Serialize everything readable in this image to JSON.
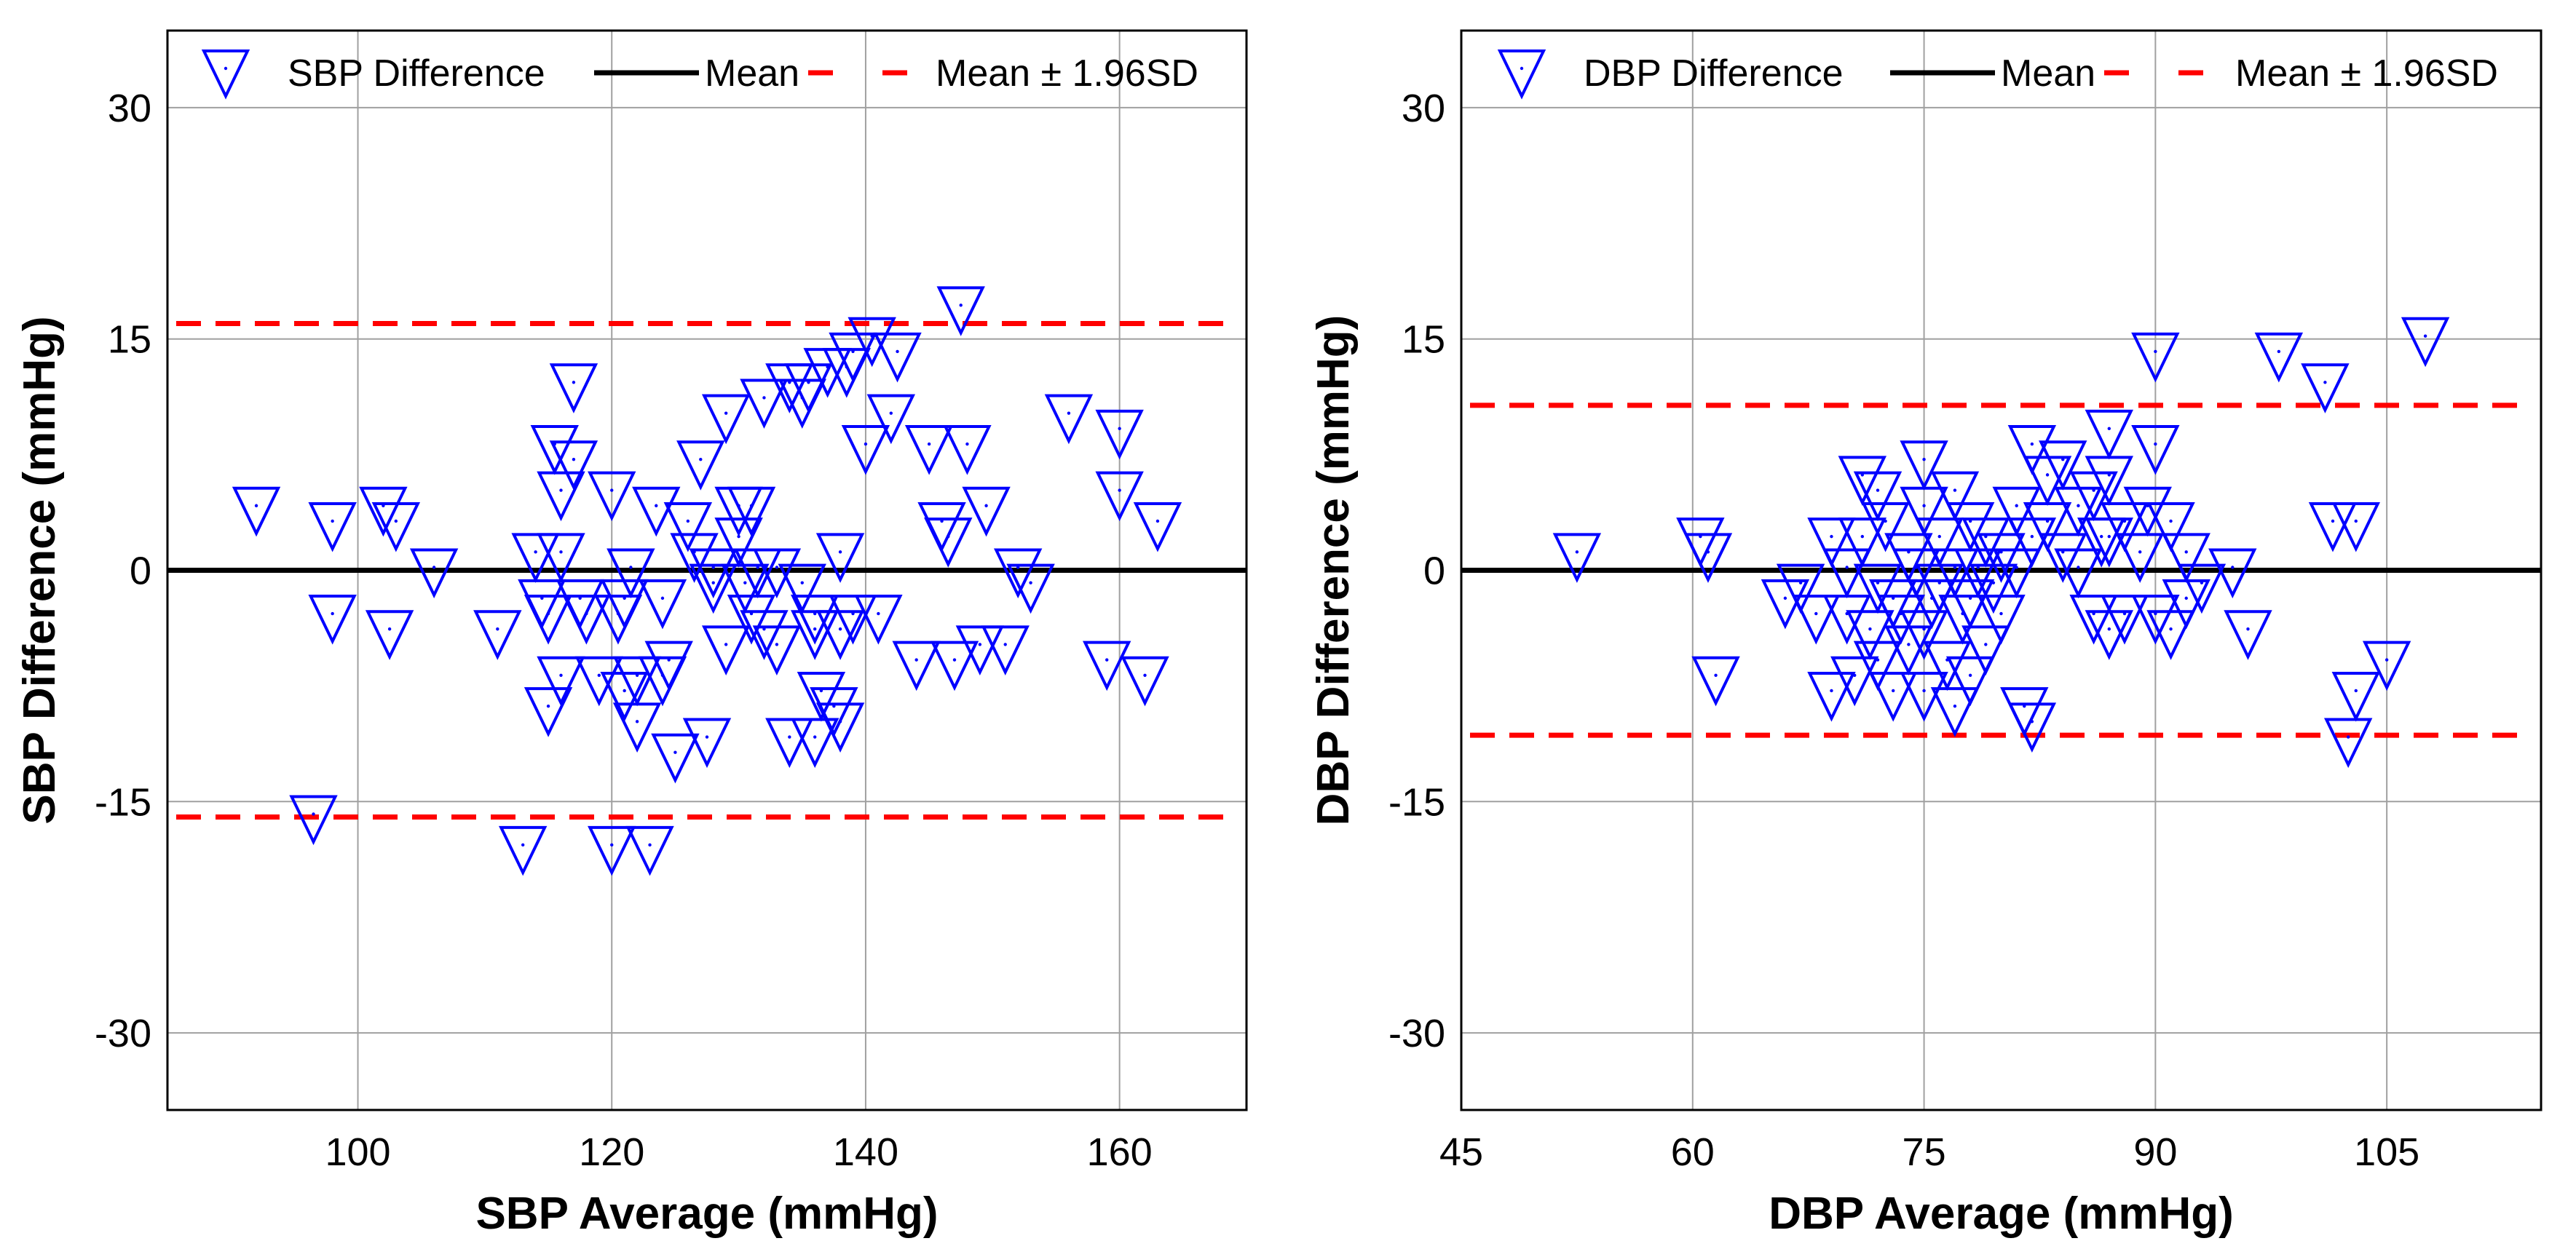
{
  "colors": {
    "marker": "#0000ff",
    "mean": "#000000",
    "limits": "#ff0000",
    "grid": "#a0a0a0",
    "axis": "#000000"
  },
  "chart_data": [
    {
      "type": "scatter",
      "id": "sbp",
      "title": "",
      "xlabel": "SBP Average (mmHg)",
      "ylabel": "SBP Difference (mmHg)",
      "xlim": [
        85,
        170
      ],
      "ylim": [
        -35,
        35
      ],
      "xticks": [
        100,
        120,
        140,
        160
      ],
      "yticks": [
        -30,
        -15,
        0,
        15,
        30
      ],
      "xtick_labels": [
        "100",
        "120",
        "140",
        "160"
      ],
      "ytick_labels": [
        "-30",
        "-15",
        "0",
        "15",
        "30"
      ],
      "grid": true,
      "legend": {
        "position": "top",
        "entries": [
          "SBP Difference",
          "Mean",
          "Mean ± 1.96SD"
        ]
      },
      "series": [
        {
          "name": "SBP Difference",
          "marker": "inverted-triangle",
          "points": [
            [
              92,
              4
            ],
            [
              96.5,
              -16
            ],
            [
              98,
              3
            ],
            [
              98,
              -3
            ],
            [
              102,
              4
            ],
            [
              102.5,
              -4
            ],
            [
              103,
              3
            ],
            [
              106,
              0
            ],
            [
              111,
              -4
            ],
            [
              113,
              -18
            ],
            [
              114,
              1
            ],
            [
              114.5,
              -2
            ],
            [
              115,
              -3
            ],
            [
              115,
              -9
            ],
            [
              115.5,
              8
            ],
            [
              116,
              5
            ],
            [
              116,
              1
            ],
            [
              116,
              -7
            ],
            [
              117,
              7
            ],
            [
              117,
              12
            ],
            [
              117.5,
              -2
            ],
            [
              118,
              -3
            ],
            [
              119,
              -7
            ],
            [
              120,
              5
            ],
            [
              120,
              -18
            ],
            [
              120.5,
              -3
            ],
            [
              121,
              -2
            ],
            [
              121,
              -8
            ],
            [
              121.5,
              0
            ],
            [
              122,
              -10
            ],
            [
              122,
              -7
            ],
            [
              123,
              -18
            ],
            [
              123.5,
              4
            ],
            [
              124,
              -2
            ],
            [
              124,
              -7
            ],
            [
              124.5,
              -6
            ],
            [
              125,
              -12
            ],
            [
              126,
              3
            ],
            [
              126.5,
              1
            ],
            [
              127,
              7
            ],
            [
              127.5,
              -11
            ],
            [
              128,
              0
            ],
            [
              128,
              -1
            ],
            [
              129,
              10
            ],
            [
              129,
              -5
            ],
            [
              130,
              4
            ],
            [
              130,
              2
            ],
            [
              130.5,
              -1
            ],
            [
              131,
              4
            ],
            [
              131,
              -3
            ],
            [
              131.5,
              0
            ],
            [
              132,
              -4
            ],
            [
              132,
              11
            ],
            [
              133,
              -5
            ],
            [
              133,
              0
            ],
            [
              134,
              -11
            ],
            [
              134,
              12
            ],
            [
              135,
              -1
            ],
            [
              135,
              11
            ],
            [
              135.5,
              12
            ],
            [
              136,
              -3
            ],
            [
              136,
              -4
            ],
            [
              136,
              -11
            ],
            [
              136.5,
              -8
            ],
            [
              137,
              13
            ],
            [
              137.5,
              -9
            ],
            [
              138,
              1
            ],
            [
              138,
              -4
            ],
            [
              138,
              -10
            ],
            [
              138.5,
              13
            ],
            [
              139,
              -3
            ],
            [
              139,
              14
            ],
            [
              140,
              8
            ],
            [
              140.5,
              15
            ],
            [
              141,
              -3
            ],
            [
              142,
              10
            ],
            [
              142.5,
              14
            ],
            [
              144,
              -6
            ],
            [
              145,
              8
            ],
            [
              146,
              3
            ],
            [
              146.5,
              2
            ],
            [
              147,
              -6
            ],
            [
              147.5,
              17
            ],
            [
              148,
              8
            ],
            [
              149,
              -5
            ],
            [
              149.5,
              4
            ],
            [
              151,
              -5
            ],
            [
              152,
              0
            ],
            [
              153,
              -1
            ],
            [
              156,
              10
            ],
            [
              159,
              -6
            ],
            [
              160,
              9
            ],
            [
              160,
              5
            ],
            [
              162,
              -7
            ],
            [
              163,
              3
            ]
          ]
        }
      ],
      "mean": 0,
      "upper_limit": 16,
      "lower_limit": -16
    },
    {
      "type": "scatter",
      "id": "dbp",
      "title": "",
      "xlabel": "DBP Average (mmHg)",
      "ylabel": "DBP Difference (mmHg)",
      "xlim": [
        45,
        115
      ],
      "ylim": [
        -35,
        35
      ],
      "xticks": [
        45,
        60,
        75,
        90,
        105
      ],
      "yticks": [
        -30,
        -15,
        0,
        15,
        30
      ],
      "xtick_labels": [
        "45",
        "60",
        "75",
        "90",
        "105"
      ],
      "ytick_labels": [
        "-30",
        "-15",
        "0",
        "15",
        "30"
      ],
      "grid": true,
      "legend": {
        "position": "top",
        "entries": [
          "DBP Difference",
          "Mean",
          "Mean ± 1.96SD"
        ]
      },
      "series": [
        {
          "name": "DBP Difference",
          "marker": "inverted-triangle",
          "points": [
            [
              52.5,
              1
            ],
            [
              60.5,
              2
            ],
            [
              61,
              1
            ],
            [
              61.5,
              -7
            ],
            [
              66,
              -2
            ],
            [
              67,
              -1
            ],
            [
              68,
              -3
            ],
            [
              69,
              2
            ],
            [
              69,
              -8
            ],
            [
              70,
              -3
            ],
            [
              70,
              0
            ],
            [
              70.5,
              -7
            ],
            [
              71,
              2
            ],
            [
              71,
              6
            ],
            [
              71.5,
              -4
            ],
            [
              72,
              5
            ],
            [
              72,
              -1
            ],
            [
              72,
              -6
            ],
            [
              72.5,
              3
            ],
            [
              73,
              -2
            ],
            [
              73,
              -8
            ],
            [
              73.5,
              -3
            ],
            [
              74,
              1
            ],
            [
              74,
              -5
            ],
            [
              74.5,
              0
            ],
            [
              75,
              4
            ],
            [
              75,
              7
            ],
            [
              75,
              -4
            ],
            [
              75,
              -8
            ],
            [
              75.5,
              -2
            ],
            [
              76,
              2
            ],
            [
              76,
              -1
            ],
            [
              76.5,
              -6
            ],
            [
              77,
              5
            ],
            [
              77,
              0
            ],
            [
              77,
              -9
            ],
            [
              77.5,
              -3
            ],
            [
              78,
              3
            ],
            [
              78,
              -2
            ],
            [
              78,
              -7
            ],
            [
              78.5,
              0
            ],
            [
              79,
              2
            ],
            [
              79,
              -5
            ],
            [
              79.5,
              -1
            ],
            [
              80,
              1
            ],
            [
              80,
              -3
            ],
            [
              81,
              4
            ],
            [
              81,
              0
            ],
            [
              81.5,
              -9
            ],
            [
              82,
              8
            ],
            [
              82,
              2
            ],
            [
              82,
              -10
            ],
            [
              83,
              3
            ],
            [
              83,
              6
            ],
            [
              84,
              1
            ],
            [
              84,
              7
            ],
            [
              85,
              4
            ],
            [
              85,
              0
            ],
            [
              86,
              5
            ],
            [
              86,
              -3
            ],
            [
              86.5,
              2
            ],
            [
              87,
              9
            ],
            [
              87,
              6
            ],
            [
              87,
              2
            ],
            [
              87,
              -4
            ],
            [
              88,
              3
            ],
            [
              88,
              -3
            ],
            [
              89,
              1
            ],
            [
              89.5,
              4
            ],
            [
              90,
              8
            ],
            [
              90,
              14
            ],
            [
              90,
              -3
            ],
            [
              91,
              3
            ],
            [
              91,
              -4
            ],
            [
              92,
              1
            ],
            [
              92,
              -2
            ],
            [
              93,
              -1
            ],
            [
              95,
              0
            ],
            [
              96,
              -4
            ],
            [
              98,
              14
            ],
            [
              101,
              12
            ],
            [
              101.5,
              3
            ],
            [
              102.5,
              -11
            ],
            [
              103,
              3
            ],
            [
              103,
              -8
            ],
            [
              105,
              -6
            ],
            [
              107.5,
              15
            ]
          ]
        }
      ],
      "mean": 0,
      "upper_limit": 10.7,
      "lower_limit": -10.7
    }
  ]
}
